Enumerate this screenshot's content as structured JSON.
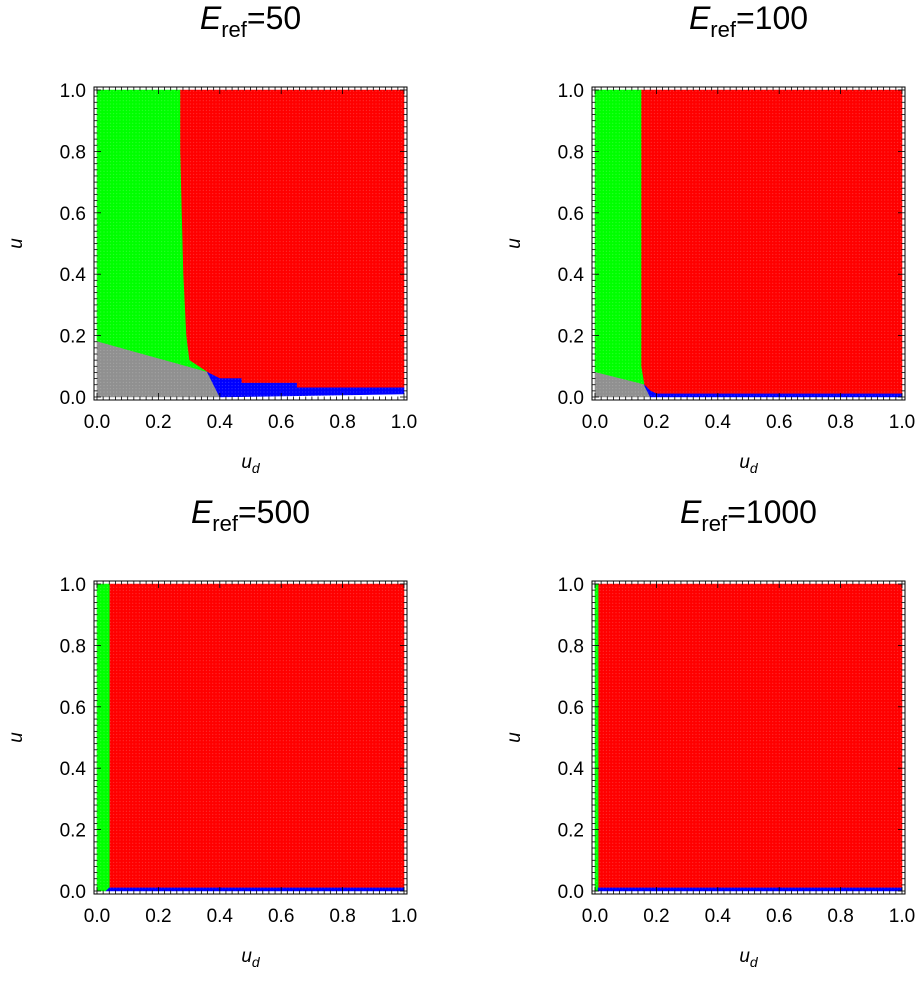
{
  "chart_data": [
    {
      "type": "region-plot",
      "title_main": "E",
      "title_sub": "ref",
      "title_value": "=50",
      "xlabel_main": "u",
      "xlabel_sub": "d",
      "ylabel": "u",
      "xlim": [
        0,
        1
      ],
      "ylim": [
        0,
        1
      ],
      "xticks": [
        "0.0",
        "0.2",
        "0.4",
        "0.6",
        "0.8",
        "1.0"
      ],
      "yticks": [
        "0.0",
        "0.2",
        "0.4",
        "0.6",
        "0.8",
        "1.0"
      ],
      "regions": [
        {
          "color": "#ff0000",
          "polygon": [
            [
              0.27,
              1
            ],
            [
              1,
              1
            ],
            [
              1,
              0.03
            ],
            [
              0.65,
              0.03
            ],
            [
              0.65,
              0.045
            ],
            [
              0.47,
              0.045
            ],
            [
              0.47,
              0.06
            ],
            [
              0.4,
              0.06
            ],
            [
              0.36,
              0.08
            ],
            [
              0.3,
              0.12
            ],
            [
              0.29,
              0.2
            ],
            [
              0.28,
              0.4
            ],
            [
              0.27,
              0.8
            ]
          ]
        },
        {
          "color": "#00ff00",
          "polygon": [
            [
              0,
              1
            ],
            [
              0.27,
              1
            ],
            [
              0.27,
              0.8
            ],
            [
              0.28,
              0.4
            ],
            [
              0.29,
              0.2
            ],
            [
              0.3,
              0.12
            ],
            [
              0.36,
              0.08
            ],
            [
              0,
              0.18
            ]
          ]
        },
        {
          "color": "#909090",
          "polygon": [
            [
              0,
              0
            ],
            [
              0.4,
              0
            ],
            [
              0.36,
              0.08
            ],
            [
              0,
              0.18
            ]
          ]
        },
        {
          "color": "#0000ff",
          "polygon": [
            [
              0.36,
              0.08
            ],
            [
              0.4,
              0.06
            ],
            [
              0.47,
              0.06
            ],
            [
              0.47,
              0.045
            ],
            [
              0.65,
              0.045
            ],
            [
              0.65,
              0.03
            ],
            [
              1,
              0.03
            ],
            [
              1,
              0.01
            ],
            [
              0.4,
              0
            ]
          ]
        }
      ]
    },
    {
      "type": "region-plot",
      "title_main": "E",
      "title_sub": "ref",
      "title_value": "=100",
      "xlabel_main": "u",
      "xlabel_sub": "d",
      "ylabel": "u",
      "xlim": [
        0,
        1
      ],
      "ylim": [
        0,
        1
      ],
      "xticks": [
        "0.0",
        "0.2",
        "0.4",
        "0.6",
        "0.8",
        "1.0"
      ],
      "yticks": [
        "0.0",
        "0.2",
        "0.4",
        "0.6",
        "0.8",
        "1.0"
      ],
      "regions": [
        {
          "color": "#ff0000",
          "polygon": [
            [
              0.15,
              1
            ],
            [
              1,
              1
            ],
            [
              1,
              0.01
            ],
            [
              0.2,
              0.01
            ],
            [
              0.18,
              0.02
            ],
            [
              0.16,
              0.04
            ],
            [
              0.15,
              0.1
            ]
          ]
        },
        {
          "color": "#00ff00",
          "polygon": [
            [
              0,
              1
            ],
            [
              0.15,
              1
            ],
            [
              0.15,
              0.1
            ],
            [
              0.16,
              0.04
            ],
            [
              0,
              0.08
            ]
          ]
        },
        {
          "color": "#909090",
          "polygon": [
            [
              0,
              0
            ],
            [
              0.18,
              0
            ],
            [
              0.16,
              0.04
            ],
            [
              0,
              0.08
            ]
          ]
        },
        {
          "color": "#0000ff",
          "polygon": [
            [
              0.16,
              0.04
            ],
            [
              0.18,
              0.02
            ],
            [
              0.2,
              0.01
            ],
            [
              1,
              0.01
            ],
            [
              1,
              0
            ],
            [
              0.18,
              0
            ]
          ]
        }
      ]
    },
    {
      "type": "region-plot",
      "title_main": "E",
      "title_sub": "ref",
      "title_value": "=500",
      "xlabel_main": "u",
      "xlabel_sub": "d",
      "ylabel": "u",
      "xlim": [
        0,
        1
      ],
      "ylim": [
        0,
        1
      ],
      "xticks": [
        "0.0",
        "0.2",
        "0.4",
        "0.6",
        "0.8",
        "1.0"
      ],
      "yticks": [
        "0.0",
        "0.2",
        "0.4",
        "0.6",
        "0.8",
        "1.0"
      ],
      "regions": [
        {
          "color": "#ff0000",
          "polygon": [
            [
              0.04,
              1
            ],
            [
              1,
              1
            ],
            [
              1,
              0.01
            ],
            [
              0.04,
              0.01
            ]
          ]
        },
        {
          "color": "#00ff00",
          "polygon": [
            [
              0,
              1
            ],
            [
              0.04,
              1
            ],
            [
              0.04,
              0.01
            ],
            [
              0.03,
              0
            ],
            [
              0,
              0
            ]
          ]
        },
        {
          "color": "#0000ff",
          "polygon": [
            [
              0.03,
              0
            ],
            [
              1,
              0
            ],
            [
              1,
              0.01
            ],
            [
              0.04,
              0.01
            ]
          ]
        }
      ]
    },
    {
      "type": "region-plot",
      "title_main": "E",
      "title_sub": "ref",
      "title_value": "=1000",
      "xlabel_main": "u",
      "xlabel_sub": "d",
      "ylabel": "u",
      "xlim": [
        0,
        1
      ],
      "ylim": [
        0,
        1
      ],
      "xticks": [
        "0.0",
        "0.2",
        "0.4",
        "0.6",
        "0.8",
        "1.0"
      ],
      "yticks": [
        "0.0",
        "0.2",
        "0.4",
        "0.6",
        "0.8",
        "1.0"
      ],
      "regions": [
        {
          "color": "#ff0000",
          "polygon": [
            [
              0.01,
              1
            ],
            [
              1,
              1
            ],
            [
              1,
              0.01
            ],
            [
              0.01,
              0.01
            ]
          ]
        },
        {
          "color": "#00ff00",
          "polygon": [
            [
              0,
              1
            ],
            [
              0.01,
              1
            ],
            [
              0.01,
              0
            ],
            [
              0,
              0
            ]
          ]
        },
        {
          "color": "#0000ff",
          "polygon": [
            [
              0.01,
              0
            ],
            [
              1,
              0
            ],
            [
              1,
              0.01
            ],
            [
              0.01,
              0.01
            ]
          ]
        }
      ]
    }
  ]
}
